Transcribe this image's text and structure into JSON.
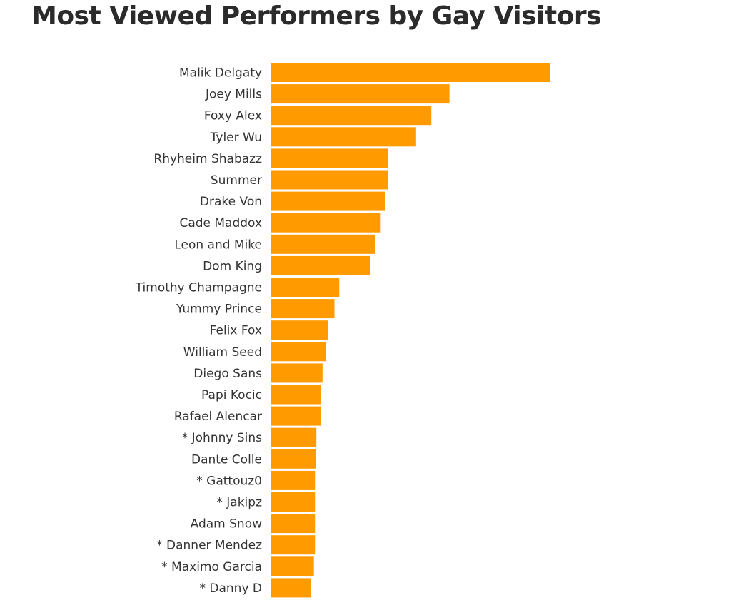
{
  "colors": {
    "bar": "#ff9a00",
    "title": "#2b2b2b",
    "label": "#333333",
    "background": "#ffffff"
  },
  "chart_data": {
    "type": "bar",
    "orientation": "horizontal",
    "title": "Most Viewed Performers by Gay Visitors",
    "xlabel": "",
    "ylabel": "",
    "grid": false,
    "legend": "none",
    "value_axis_shown": false,
    "categories": [
      "Malik Delgaty",
      "Joey Mills",
      "Foxy Alex",
      "Tyler Wu",
      "Rhyheim Shabazz",
      "Summer",
      "Drake Von",
      "Cade Maddox",
      "Leon and Mike",
      "Dom King",
      "Timothy Champagne",
      "Yummy Prince",
      "Felix Fox",
      "William Seed",
      "Diego Sans",
      "Papi Kocic",
      "Rafael Alencar",
      "* Johnny Sins",
      "Dante Colle",
      "* Gattouz0",
      "* Jakipz",
      "Adam Snow",
      "* Danner Mendez",
      "* Maximo Garcia",
      "* Danny D"
    ],
    "values": [
      100,
      64,
      57.5,
      52,
      42,
      41.8,
      41,
      39.3,
      37.3,
      35.4,
      24.4,
      22.7,
      20.3,
      19.6,
      18.4,
      17.9,
      17.9,
      16.2,
      15.9,
      15.7,
      15.7,
      15.7,
      15.7,
      15.3,
      14.1
    ],
    "xlim": [
      0,
      100
    ]
  }
}
